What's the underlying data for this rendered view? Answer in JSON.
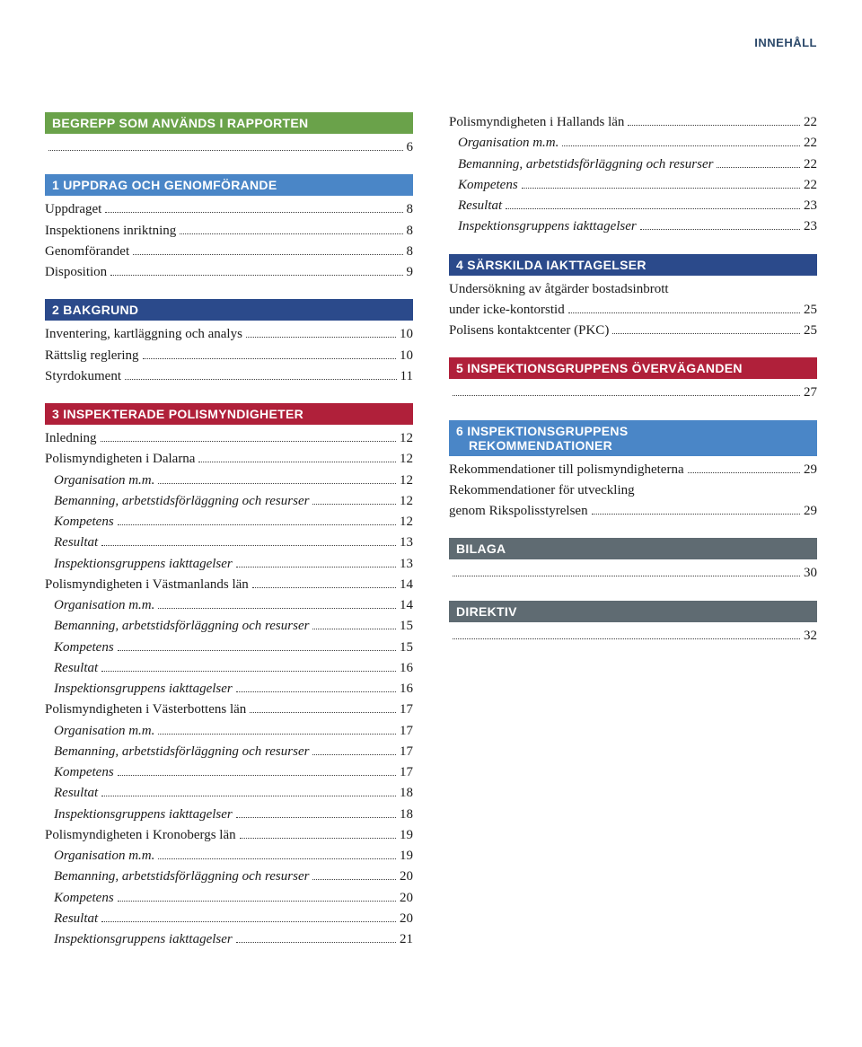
{
  "header": "INNEHÅLL",
  "colors": {
    "green": "#6aa24a",
    "blue_light": "#4a86c7",
    "blue_dark": "#2b4a8b",
    "red": "#b0203a",
    "grey": "#5f6b72",
    "header_text": "#2d4a6b"
  },
  "left": [
    {
      "type": "bar",
      "colorKey": "green",
      "text": "BEGREPP SOM ANVÄNDS I RAPPORTEN",
      "first": true
    },
    {
      "type": "dots_only",
      "page": "6"
    },
    {
      "type": "bar",
      "colorKey": "blue_light",
      "text": "1 UPPDRAG OCH GENOMFÖRANDE"
    },
    {
      "type": "entry",
      "label": "Uppdraget",
      "page": "8"
    },
    {
      "type": "entry",
      "label": "Inspektionens inriktning",
      "page": "8"
    },
    {
      "type": "entry",
      "label": "Genomförandet",
      "page": "8"
    },
    {
      "type": "entry",
      "label": "Disposition",
      "page": "9"
    },
    {
      "type": "bar",
      "colorKey": "blue_dark",
      "text": "2 BAKGRUND"
    },
    {
      "type": "entry",
      "label": "Inventering, kartläggning och analys",
      "page": "10"
    },
    {
      "type": "entry",
      "label": "Rättslig reglering",
      "page": "10"
    },
    {
      "type": "entry",
      "label": "Styrdokument",
      "page": "11"
    },
    {
      "type": "bar",
      "colorKey": "red",
      "text": "3 INSPEKTERADE POLISMYNDIGHETER"
    },
    {
      "type": "entry",
      "label": "Inledning",
      "page": "12"
    },
    {
      "type": "entry",
      "label": "Polismyndigheten i Dalarna",
      "page": "12"
    },
    {
      "type": "entry",
      "label": "Organisation m.m.",
      "page": "12",
      "italic": true,
      "indent": true
    },
    {
      "type": "entry",
      "label": "Bemanning, arbetstidsförläggning och resurser",
      "page": "12",
      "italic": true,
      "indent": true
    },
    {
      "type": "entry",
      "label": "Kompetens",
      "page": "12",
      "italic": true,
      "indent": true
    },
    {
      "type": "entry",
      "label": "Resultat",
      "page": "13",
      "italic": true,
      "indent": true
    },
    {
      "type": "entry",
      "label": "Inspektionsgruppens iakttagelser",
      "page": "13",
      "italic": true,
      "indent": true
    },
    {
      "type": "entry",
      "label": "Polismyndigheten i Västmanlands län",
      "page": "14"
    },
    {
      "type": "entry",
      "label": "Organisation m.m.",
      "page": "14",
      "italic": true,
      "indent": true
    },
    {
      "type": "entry",
      "label": "Bemanning, arbetstidsförläggning och resurser",
      "page": "15",
      "italic": true,
      "indent": true
    },
    {
      "type": "entry",
      "label": "Kompetens",
      "page": "15",
      "italic": true,
      "indent": true
    },
    {
      "type": "entry",
      "label": "Resultat",
      "page": "16",
      "italic": true,
      "indent": true
    },
    {
      "type": "entry",
      "label": "Inspektionsgruppens iakttagelser",
      "page": "16",
      "italic": true,
      "indent": true
    },
    {
      "type": "entry",
      "label": "Polismyndigheten i Västerbottens län",
      "page": "17"
    },
    {
      "type": "entry",
      "label": "Organisation m.m.",
      "page": "17",
      "italic": true,
      "indent": true
    },
    {
      "type": "entry",
      "label": "Bemanning, arbetstidsförläggning och resurser",
      "page": "17",
      "italic": true,
      "indent": true
    },
    {
      "type": "entry",
      "label": "Kompetens",
      "page": "17",
      "italic": true,
      "indent": true
    },
    {
      "type": "entry",
      "label": "Resultat",
      "page": "18",
      "italic": true,
      "indent": true
    },
    {
      "type": "entry",
      "label": "Inspektionsgruppens iakttagelser",
      "page": "18",
      "italic": true,
      "indent": true
    },
    {
      "type": "entry",
      "label": "Polismyndigheten i Kronobergs län",
      "page": "19"
    },
    {
      "type": "entry",
      "label": "Organisation m.m.",
      "page": "19",
      "italic": true,
      "indent": true
    },
    {
      "type": "entry",
      "label": "Bemanning, arbetstidsförläggning och resurser",
      "page": "20",
      "italic": true,
      "indent": true
    },
    {
      "type": "entry",
      "label": "Kompetens",
      "page": "20",
      "italic": true,
      "indent": true
    },
    {
      "type": "entry",
      "label": "Resultat",
      "page": "20",
      "italic": true,
      "indent": true
    },
    {
      "type": "entry",
      "label": "Inspektionsgruppens iakttagelser",
      "page": "21",
      "italic": true,
      "indent": true
    }
  ],
  "right": [
    {
      "type": "entry",
      "label": "Polismyndigheten i Hallands län",
      "page": "22"
    },
    {
      "type": "entry",
      "label": "Organisation m.m.",
      "page": "22",
      "italic": true,
      "indent": true
    },
    {
      "type": "entry",
      "label": "Bemanning, arbetstidsförläggning och resurser",
      "page": "22",
      "italic": true,
      "indent": true
    },
    {
      "type": "entry",
      "label": "Kompetens",
      "page": "22",
      "italic": true,
      "indent": true
    },
    {
      "type": "entry",
      "label": "Resultat",
      "page": "23",
      "italic": true,
      "indent": true
    },
    {
      "type": "entry",
      "label": "Inspektionsgruppens iakttagelser",
      "page": "23",
      "italic": true,
      "indent": true
    },
    {
      "type": "bar",
      "colorKey": "blue_dark",
      "text": "4 SÄRSKILDA IAKTTAGELSER"
    },
    {
      "type": "plain",
      "label": "Undersökning av åtgärder bostadsinbrott"
    },
    {
      "type": "entry",
      "label": "under icke-kontorstid",
      "page": "25"
    },
    {
      "type": "entry",
      "label": "Polisens kontaktcenter (PKC)",
      "page": "25"
    },
    {
      "type": "bar",
      "colorKey": "red",
      "text": "5 INSPEKTIONSGRUPPENS ÖVERVÄGANDEN"
    },
    {
      "type": "dots_only",
      "page": "27"
    },
    {
      "type": "bar_multi",
      "colorKey": "blue_light",
      "lines": [
        "6 INSPEKTIONSGRUPPENS",
        "REKOMMENDATIONER"
      ]
    },
    {
      "type": "entry",
      "label": "Rekommendationer till polismyndigheterna",
      "page": "29"
    },
    {
      "type": "plain",
      "label": "Rekommendationer för utveckling"
    },
    {
      "type": "entry",
      "label": "genom Rikspolisstyrelsen",
      "page": "29"
    },
    {
      "type": "bar",
      "colorKey": "grey",
      "text": "BILAGA"
    },
    {
      "type": "dots_only",
      "page": "30"
    },
    {
      "type": "bar",
      "colorKey": "grey",
      "text": "DIREKTIV"
    },
    {
      "type": "dots_only",
      "page": "32"
    }
  ]
}
